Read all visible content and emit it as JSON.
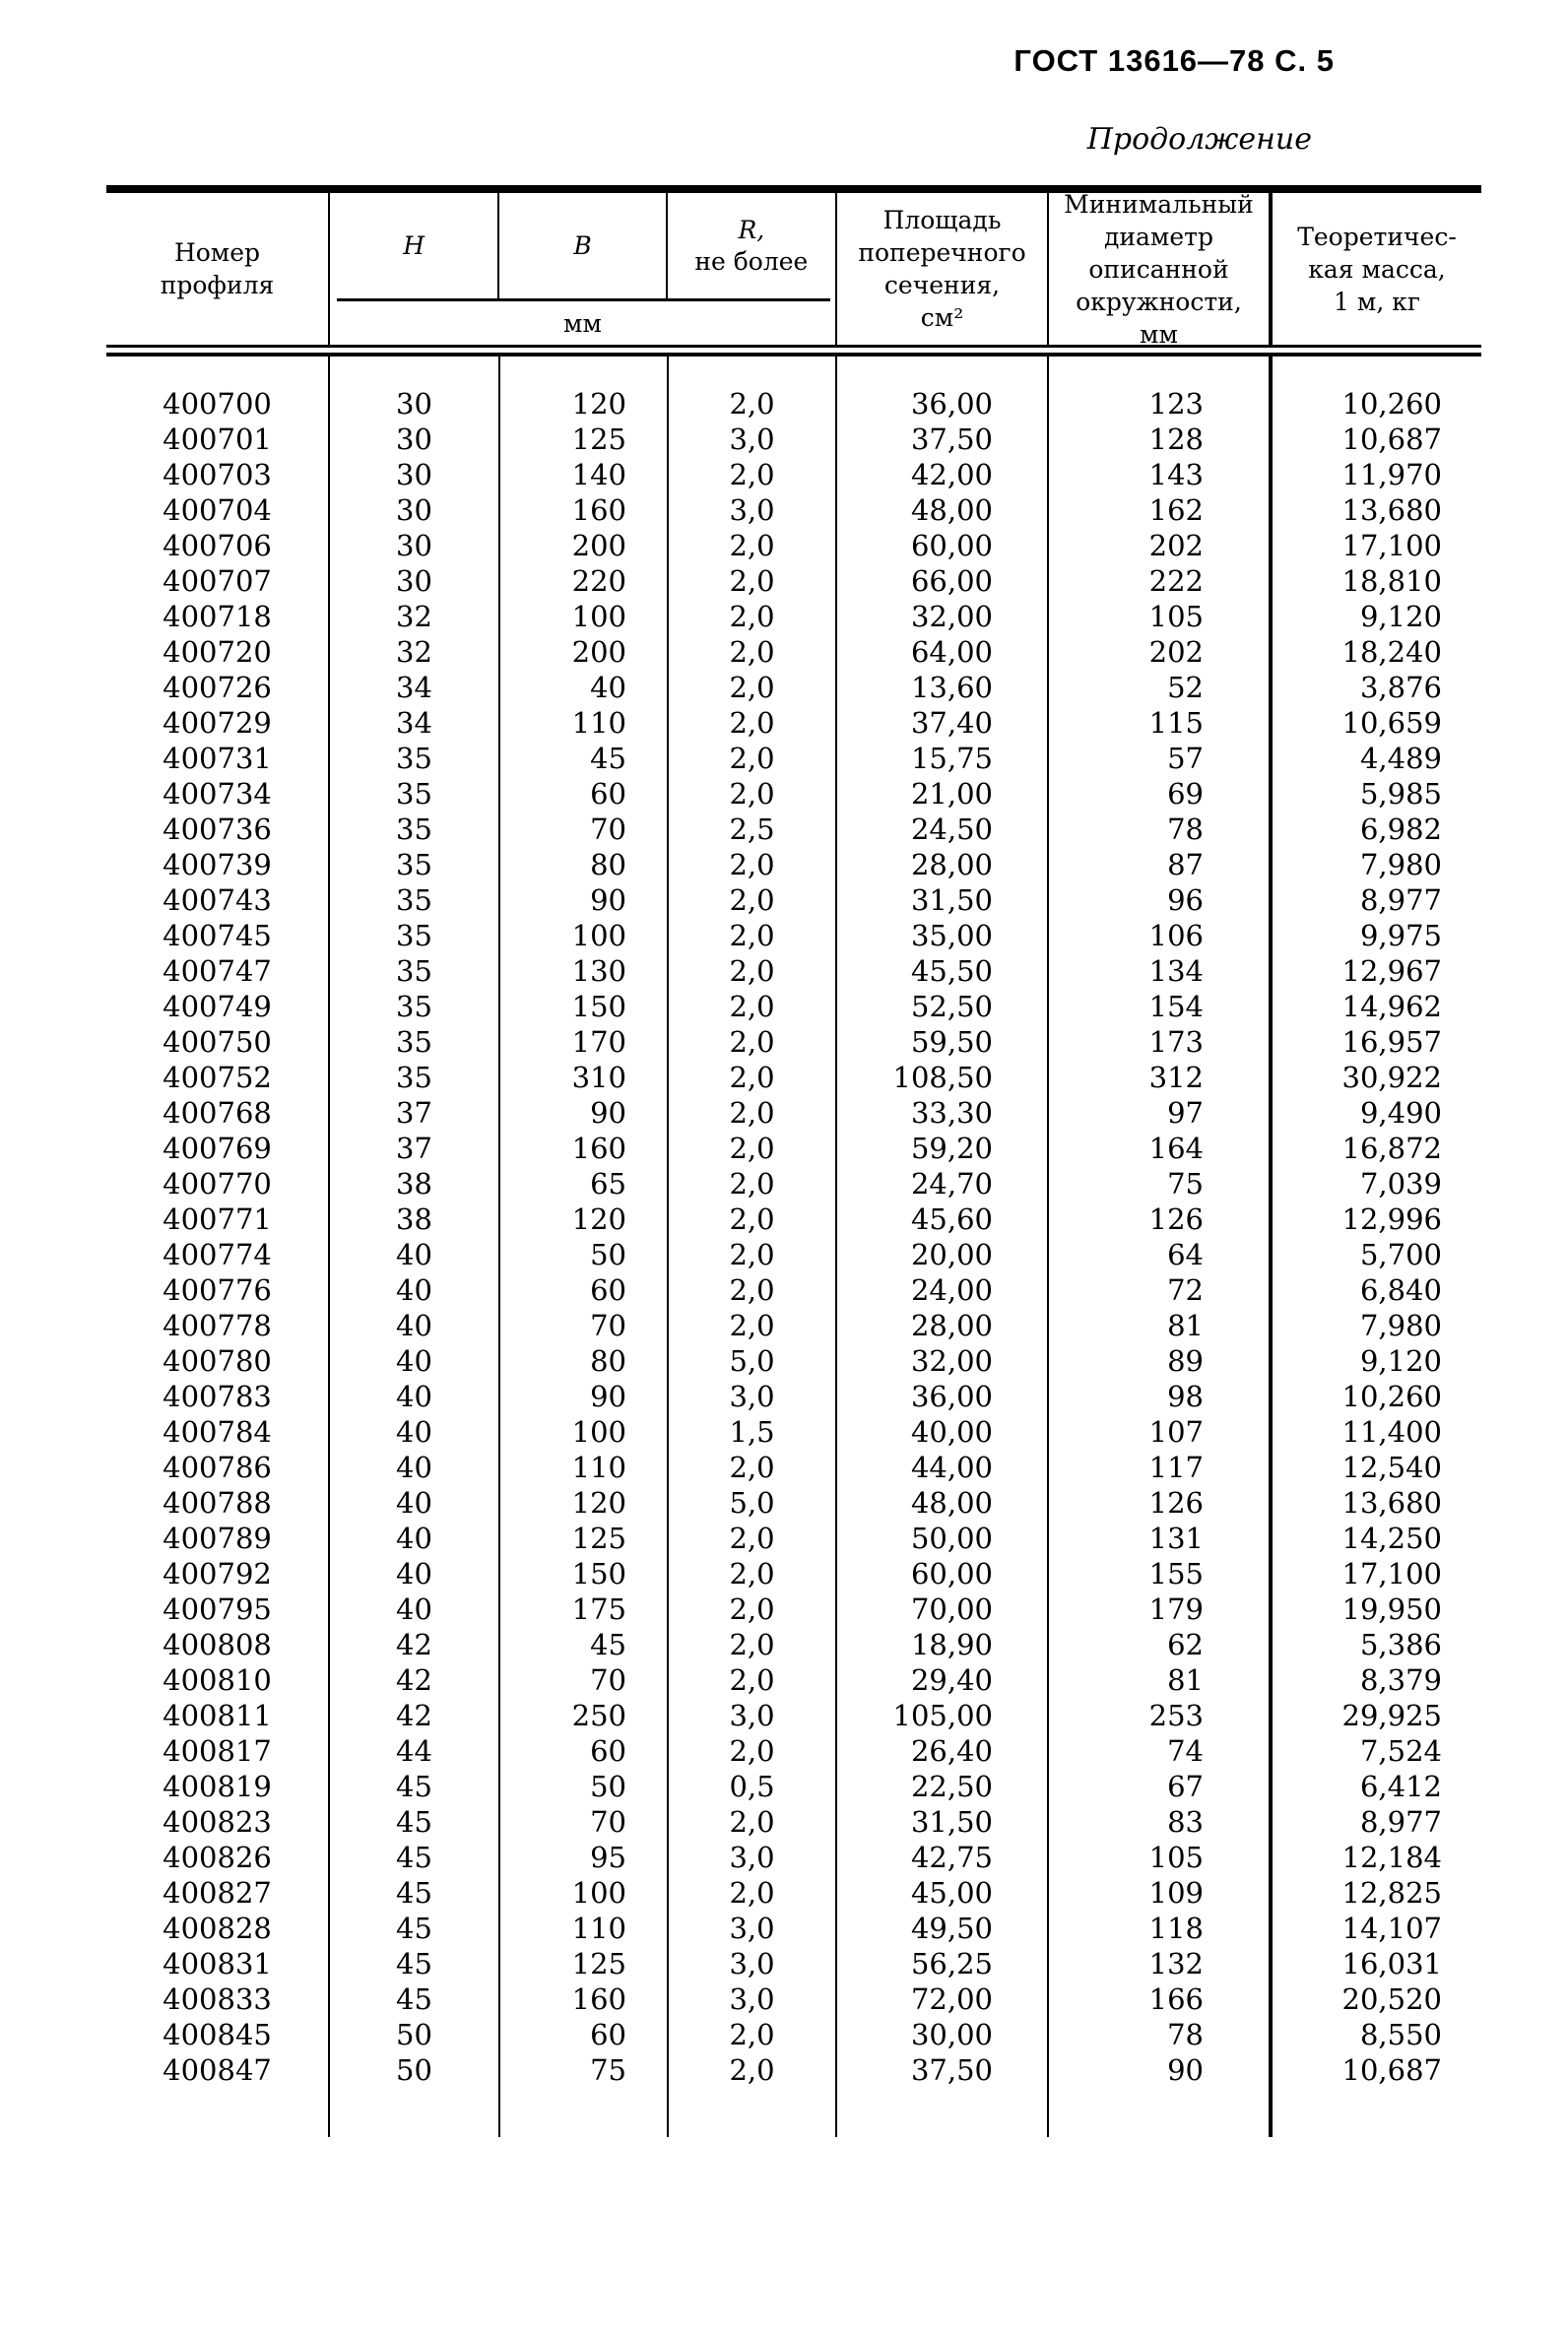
{
  "page": {
    "doc_ref": "ГОСТ 13616—78 С. 5",
    "continuation": "Продолжение"
  },
  "table": {
    "header": {
      "col_profile": "Номер\nпрофиля",
      "col_h": "Н",
      "col_b": "В",
      "col_r_top": "R,",
      "col_r_bottom": "не более",
      "units_mm": "мм",
      "col_area": "Площадь\nпоперечного\nсечения,\nсм²",
      "col_diameter": "Минимальный\nдиаметр\nописанной\nокружности,\nмм",
      "col_mass": "Теоретичес-\nкая масса,\n1 м, кг"
    },
    "rows": [
      [
        "400700",
        "30",
        "120",
        "2,0",
        "36,00",
        "123",
        "10,260"
      ],
      [
        "400701",
        "30",
        "125",
        "3,0",
        "37,50",
        "128",
        "10,687"
      ],
      [
        "400703",
        "30",
        "140",
        "2,0",
        "42,00",
        "143",
        "11,970"
      ],
      [
        "400704",
        "30",
        "160",
        "3,0",
        "48,00",
        "162",
        "13,680"
      ],
      [
        "400706",
        "30",
        "200",
        "2,0",
        "60,00",
        "202",
        "17,100"
      ],
      [
        "400707",
        "30",
        "220",
        "2,0",
        "66,00",
        "222",
        "18,810"
      ],
      [
        "400718",
        "32",
        "100",
        "2,0",
        "32,00",
        "105",
        "9,120"
      ],
      [
        "400720",
        "32",
        "200",
        "2,0",
        "64,00",
        "202",
        "18,240"
      ],
      [
        "400726",
        "34",
        "40",
        "2,0",
        "13,60",
        "52",
        "3,876"
      ],
      [
        "400729",
        "34",
        "110",
        "2,0",
        "37,40",
        "115",
        "10,659"
      ],
      [
        "400731",
        "35",
        "45",
        "2,0",
        "15,75",
        "57",
        "4,489"
      ],
      [
        "400734",
        "35",
        "60",
        "2,0",
        "21,00",
        "69",
        "5,985"
      ],
      [
        "400736",
        "35",
        "70",
        "2,5",
        "24,50",
        "78",
        "6,982"
      ],
      [
        "400739",
        "35",
        "80",
        "2,0",
        "28,00",
        "87",
        "7,980"
      ],
      [
        "400743",
        "35",
        "90",
        "2,0",
        "31,50",
        "96",
        "8,977"
      ],
      [
        "400745",
        "35",
        "100",
        "2,0",
        "35,00",
        "106",
        "9,975"
      ],
      [
        "400747",
        "35",
        "130",
        "2,0",
        "45,50",
        "134",
        "12,967"
      ],
      [
        "400749",
        "35",
        "150",
        "2,0",
        "52,50",
        "154",
        "14,962"
      ],
      [
        "400750",
        "35",
        "170",
        "2,0",
        "59,50",
        "173",
        "16,957"
      ],
      [
        "400752",
        "35",
        "310",
        "2,0",
        "108,50",
        "312",
        "30,922"
      ],
      [
        "400768",
        "37",
        "90",
        "2,0",
        "33,30",
        "97",
        "9,490"
      ],
      [
        "400769",
        "37",
        "160",
        "2,0",
        "59,20",
        "164",
        "16,872"
      ],
      [
        "400770",
        "38",
        "65",
        "2,0",
        "24,70",
        "75",
        "7,039"
      ],
      [
        "400771",
        "38",
        "120",
        "2,0",
        "45,60",
        "126",
        "12,996"
      ],
      [
        "400774",
        "40",
        "50",
        "2,0",
        "20,00",
        "64",
        "5,700"
      ],
      [
        "400776",
        "40",
        "60",
        "2,0",
        "24,00",
        "72",
        "6,840"
      ],
      [
        "400778",
        "40",
        "70",
        "2,0",
        "28,00",
        "81",
        "7,980"
      ],
      [
        "400780",
        "40",
        "80",
        "5,0",
        "32,00",
        "89",
        "9,120"
      ],
      [
        "400783",
        "40",
        "90",
        "3,0",
        "36,00",
        "98",
        "10,260"
      ],
      [
        "400784",
        "40",
        "100",
        "1,5",
        "40,00",
        "107",
        "11,400"
      ],
      [
        "400786",
        "40",
        "110",
        "2,0",
        "44,00",
        "117",
        "12,540"
      ],
      [
        "400788",
        "40",
        "120",
        "5,0",
        "48,00",
        "126",
        "13,680"
      ],
      [
        "400789",
        "40",
        "125",
        "2,0",
        "50,00",
        "131",
        "14,250"
      ],
      [
        "400792",
        "40",
        "150",
        "2,0",
        "60,00",
        "155",
        "17,100"
      ],
      [
        "400795",
        "40",
        "175",
        "2,0",
        "70,00",
        "179",
        "19,950"
      ],
      [
        "400808",
        "42",
        "45",
        "2,0",
        "18,90",
        "62",
        "5,386"
      ],
      [
        "400810",
        "42",
        "70",
        "2,0",
        "29,40",
        "81",
        "8,379"
      ],
      [
        "400811",
        "42",
        "250",
        "3,0",
        "105,00",
        "253",
        "29,925"
      ],
      [
        "400817",
        "44",
        "60",
        "2,0",
        "26,40",
        "74",
        "7,524"
      ],
      [
        "400819",
        "45",
        "50",
        "0,5",
        "22,50",
        "67",
        "6,412"
      ],
      [
        "400823",
        "45",
        "70",
        "2,0",
        "31,50",
        "83",
        "8,977"
      ],
      [
        "400826",
        "45",
        "95",
        "3,0",
        "42,75",
        "105",
        "12,184"
      ],
      [
        "400827",
        "45",
        "100",
        "2,0",
        "45,00",
        "109",
        "12,825"
      ],
      [
        "400828",
        "45",
        "110",
        "3,0",
        "49,50",
        "118",
        "14,107"
      ],
      [
        "400831",
        "45",
        "125",
        "3,0",
        "56,25",
        "132",
        "16,031"
      ],
      [
        "400833",
        "45",
        "160",
        "3,0",
        "72,00",
        "166",
        "20,520"
      ],
      [
        "400845",
        "50",
        "60",
        "2,0",
        "30,00",
        "78",
        "8,550"
      ],
      [
        "400847",
        "50",
        "75",
        "2,0",
        "37,50",
        "90",
        "10,687"
      ]
    ]
  }
}
